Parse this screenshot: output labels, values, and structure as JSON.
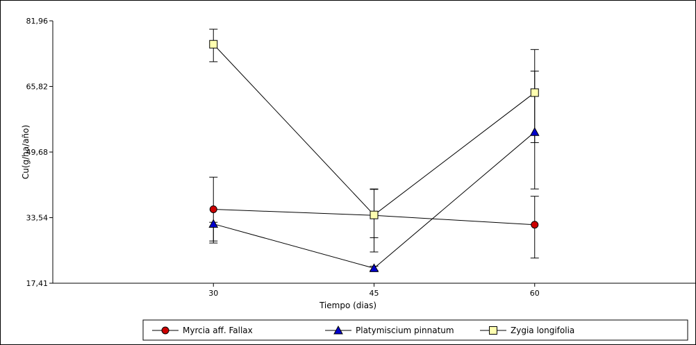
{
  "chart_data": {
    "type": "line",
    "title": "",
    "xlabel": "Tiempo (dias)",
    "ylabel": "Cu(g/ha/año)",
    "x": [
      30,
      45,
      60
    ],
    "xlim": [
      15,
      75
    ],
    "ylim": [
      17.41,
      81.96
    ],
    "yticks": [
      "17,41",
      "33,54",
      "49,68",
      "65,82",
      "81,96"
    ],
    "ytick_values": [
      17.41,
      33.54,
      49.68,
      65.82,
      81.96
    ],
    "xticks": [
      "30",
      "45",
      "60"
    ],
    "xtick_values": [
      30,
      45,
      60
    ],
    "grid": false,
    "legend_position": "bottom",
    "series": [
      {
        "name": "Myrcia aff. Fallax",
        "marker": "circle",
        "color": "#cc0000",
        "values": [
          35.6,
          34.1,
          31.8
        ],
        "error_low": [
          27.3,
          25.1,
          23.6
        ],
        "error_high": [
          43.5,
          40.5,
          38.8
        ]
      },
      {
        "name": "Platymiscium pinnatum",
        "marker": "triangle",
        "color": "#0000cc",
        "values": [
          32.0,
          21.1,
          54.6
        ],
        "error_low": [
          27.8,
          20.6,
          40.6
        ],
        "error_high": [
          32.4,
          21.6,
          69.6
        ]
      },
      {
        "name": "Zygia longifolia",
        "marker": "square",
        "color": "#ffffb0",
        "values": [
          76.2,
          34.2,
          64.3
        ],
        "error_low": [
          71.9,
          28.6,
          52.0
        ],
        "error_high": [
          79.9,
          40.6,
          74.9
        ]
      }
    ]
  }
}
